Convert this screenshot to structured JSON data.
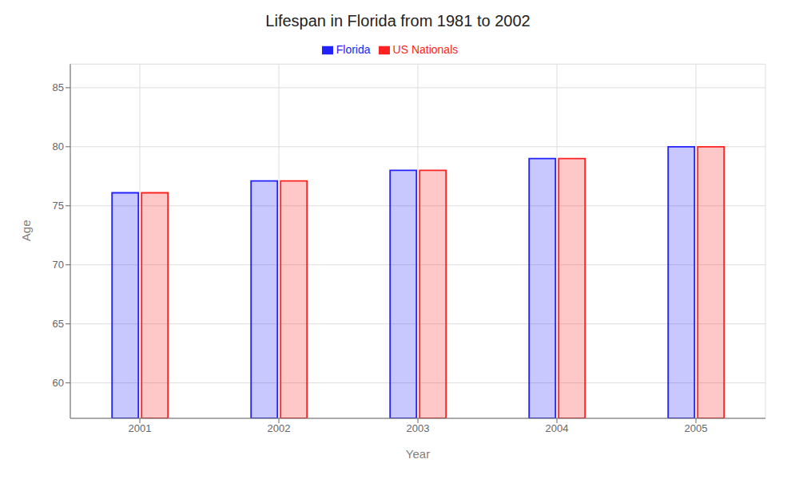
{
  "chart_data": {
    "type": "bar",
    "title": "Lifespan in Florida from 1981 to 2002",
    "xlabel": "Year",
    "ylabel": "Age",
    "categories": [
      "2001",
      "2002",
      "2003",
      "2004",
      "2005"
    ],
    "series": [
      {
        "name": "Florida",
        "color": "#2222ff",
        "values": [
          76.1,
          77.1,
          78.0,
          79.0,
          80.0
        ]
      },
      {
        "name": "US Nationals",
        "color": "#ff2222",
        "values": [
          76.1,
          77.1,
          78.0,
          79.0,
          80.0
        ]
      }
    ],
    "ylim": [
      57,
      87
    ],
    "yticks": [
      60,
      65,
      70,
      75,
      80,
      85
    ],
    "grid": true,
    "legend": "top"
  }
}
